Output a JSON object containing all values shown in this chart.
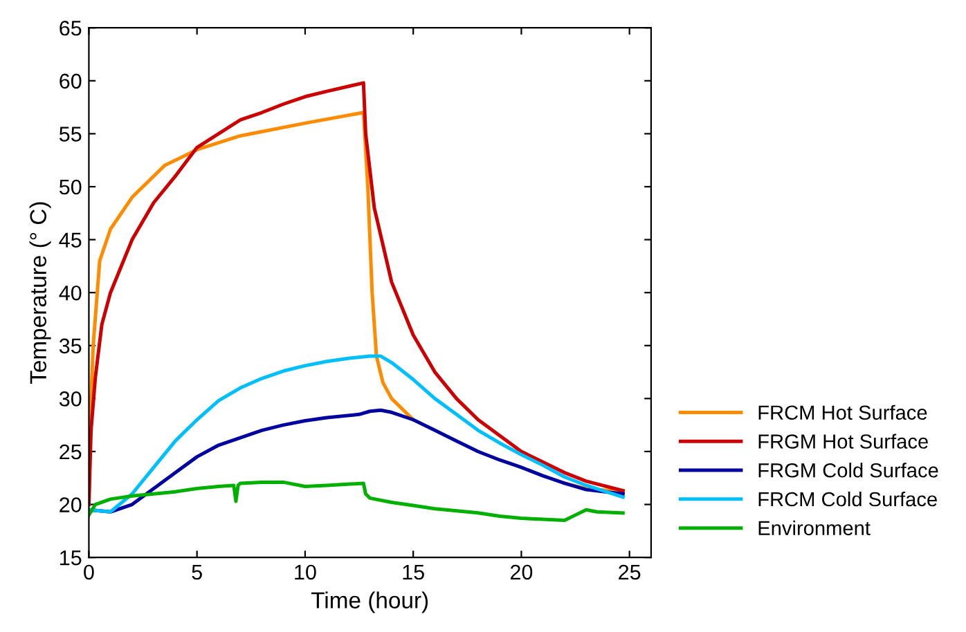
{
  "chart_data": {
    "type": "line",
    "xlabel": "Time (hour)",
    "ylabel": "Temperature (° C)",
    "xlim": [
      0,
      26
    ],
    "ylim": [
      15,
      65
    ],
    "xticks": [
      0,
      5,
      10,
      15,
      20,
      25
    ],
    "yticks": [
      15,
      20,
      25,
      30,
      35,
      40,
      45,
      50,
      55,
      60,
      65
    ],
    "grid": false,
    "legend": "bottom right",
    "line_style": "solid",
    "marker": "none",
    "series": [
      {
        "name": "FRCM Hot Surface",
        "color": "#ff8c00",
        "x": [
          0,
          0.1,
          0.2,
          0.5,
          1,
          2,
          3,
          3.5,
          5,
          7,
          10,
          12.7,
          12.9,
          13.1,
          13.3,
          13.6,
          14,
          15,
          16,
          17,
          18,
          19,
          20,
          21,
          22,
          23,
          24.7
        ],
        "values": [
          20,
          30,
          35,
          43,
          46,
          49,
          51,
          52,
          53.5,
          54.8,
          56,
          57,
          50,
          40,
          34,
          31.5,
          30,
          28,
          null,
          null,
          null,
          null,
          null,
          null,
          22,
          21.5,
          21.2
        ]
      },
      {
        "name": "FRGM Hot Surface",
        "color": "#cc0000",
        "x": [
          0,
          0.1,
          0.3,
          0.6,
          1,
          2,
          3,
          4,
          5,
          6,
          7,
          8,
          9,
          10,
          11,
          12.7,
          12.8,
          13.2,
          14,
          15,
          16,
          17,
          18,
          19,
          20,
          21,
          22,
          23,
          24.7
        ],
        "values": [
          20,
          27,
          32,
          37,
          40,
          45,
          48.5,
          51,
          53.7,
          55,
          56.3,
          57,
          57.8,
          58.5,
          59,
          59.8,
          55,
          48,
          41,
          36,
          32.5,
          30,
          28,
          26.5,
          25,
          24,
          23,
          22.2,
          21.3
        ]
      },
      {
        "name": "FRGM Cold Surface",
        "color": "#0000a0",
        "x": [
          0,
          1,
          2,
          3,
          4,
          5,
          6,
          7,
          8,
          9,
          10,
          11,
          12.5,
          13,
          13.5,
          14,
          15,
          16,
          17,
          18,
          19,
          20,
          21,
          22,
          23,
          24.7
        ],
        "values": [
          19.5,
          19.3,
          20,
          21.5,
          23,
          24.5,
          25.6,
          26.3,
          27,
          27.5,
          27.9,
          28.2,
          28.5,
          28.8,
          28.9,
          28.7,
          28,
          27,
          26,
          25,
          24.2,
          23.5,
          22.7,
          22,
          21.4,
          21
        ]
      },
      {
        "name": "FRCM Cold Surface",
        "color": "#00bfff",
        "x": [
          0,
          1,
          2,
          3,
          4,
          5,
          6,
          7,
          8,
          9,
          10,
          11,
          12,
          13,
          13.5,
          14,
          15,
          16,
          17,
          18,
          19,
          20,
          21,
          22,
          23,
          24.7
        ],
        "values": [
          19.5,
          19.3,
          21,
          23.5,
          26,
          28,
          29.8,
          31,
          31.9,
          32.6,
          33.1,
          33.5,
          33.8,
          34,
          34,
          33.4,
          31.8,
          30,
          28.5,
          27,
          25.8,
          24.7,
          23.7,
          22.6,
          21.8,
          20.7
        ]
      },
      {
        "name": "Environment",
        "color": "#00b000",
        "x": [
          0,
          0.3,
          1,
          2,
          3,
          4,
          5,
          6,
          6.7,
          6.8,
          6.9,
          7,
          8,
          9,
          10,
          11,
          12.7,
          12.8,
          13,
          14,
          15,
          16,
          17,
          18,
          19,
          20,
          21,
          22,
          22.5,
          23,
          23.5,
          24.7
        ],
        "values": [
          19,
          20,
          20.5,
          20.8,
          21,
          21.2,
          21.5,
          21.7,
          21.8,
          20.3,
          21.8,
          22,
          22.1,
          22.1,
          21.7,
          21.8,
          22,
          21,
          20.6,
          20.2,
          19.9,
          19.6,
          19.4,
          19.2,
          18.9,
          18.7,
          18.6,
          18.5,
          19,
          19.5,
          19.3,
          19.2
        ]
      }
    ]
  }
}
